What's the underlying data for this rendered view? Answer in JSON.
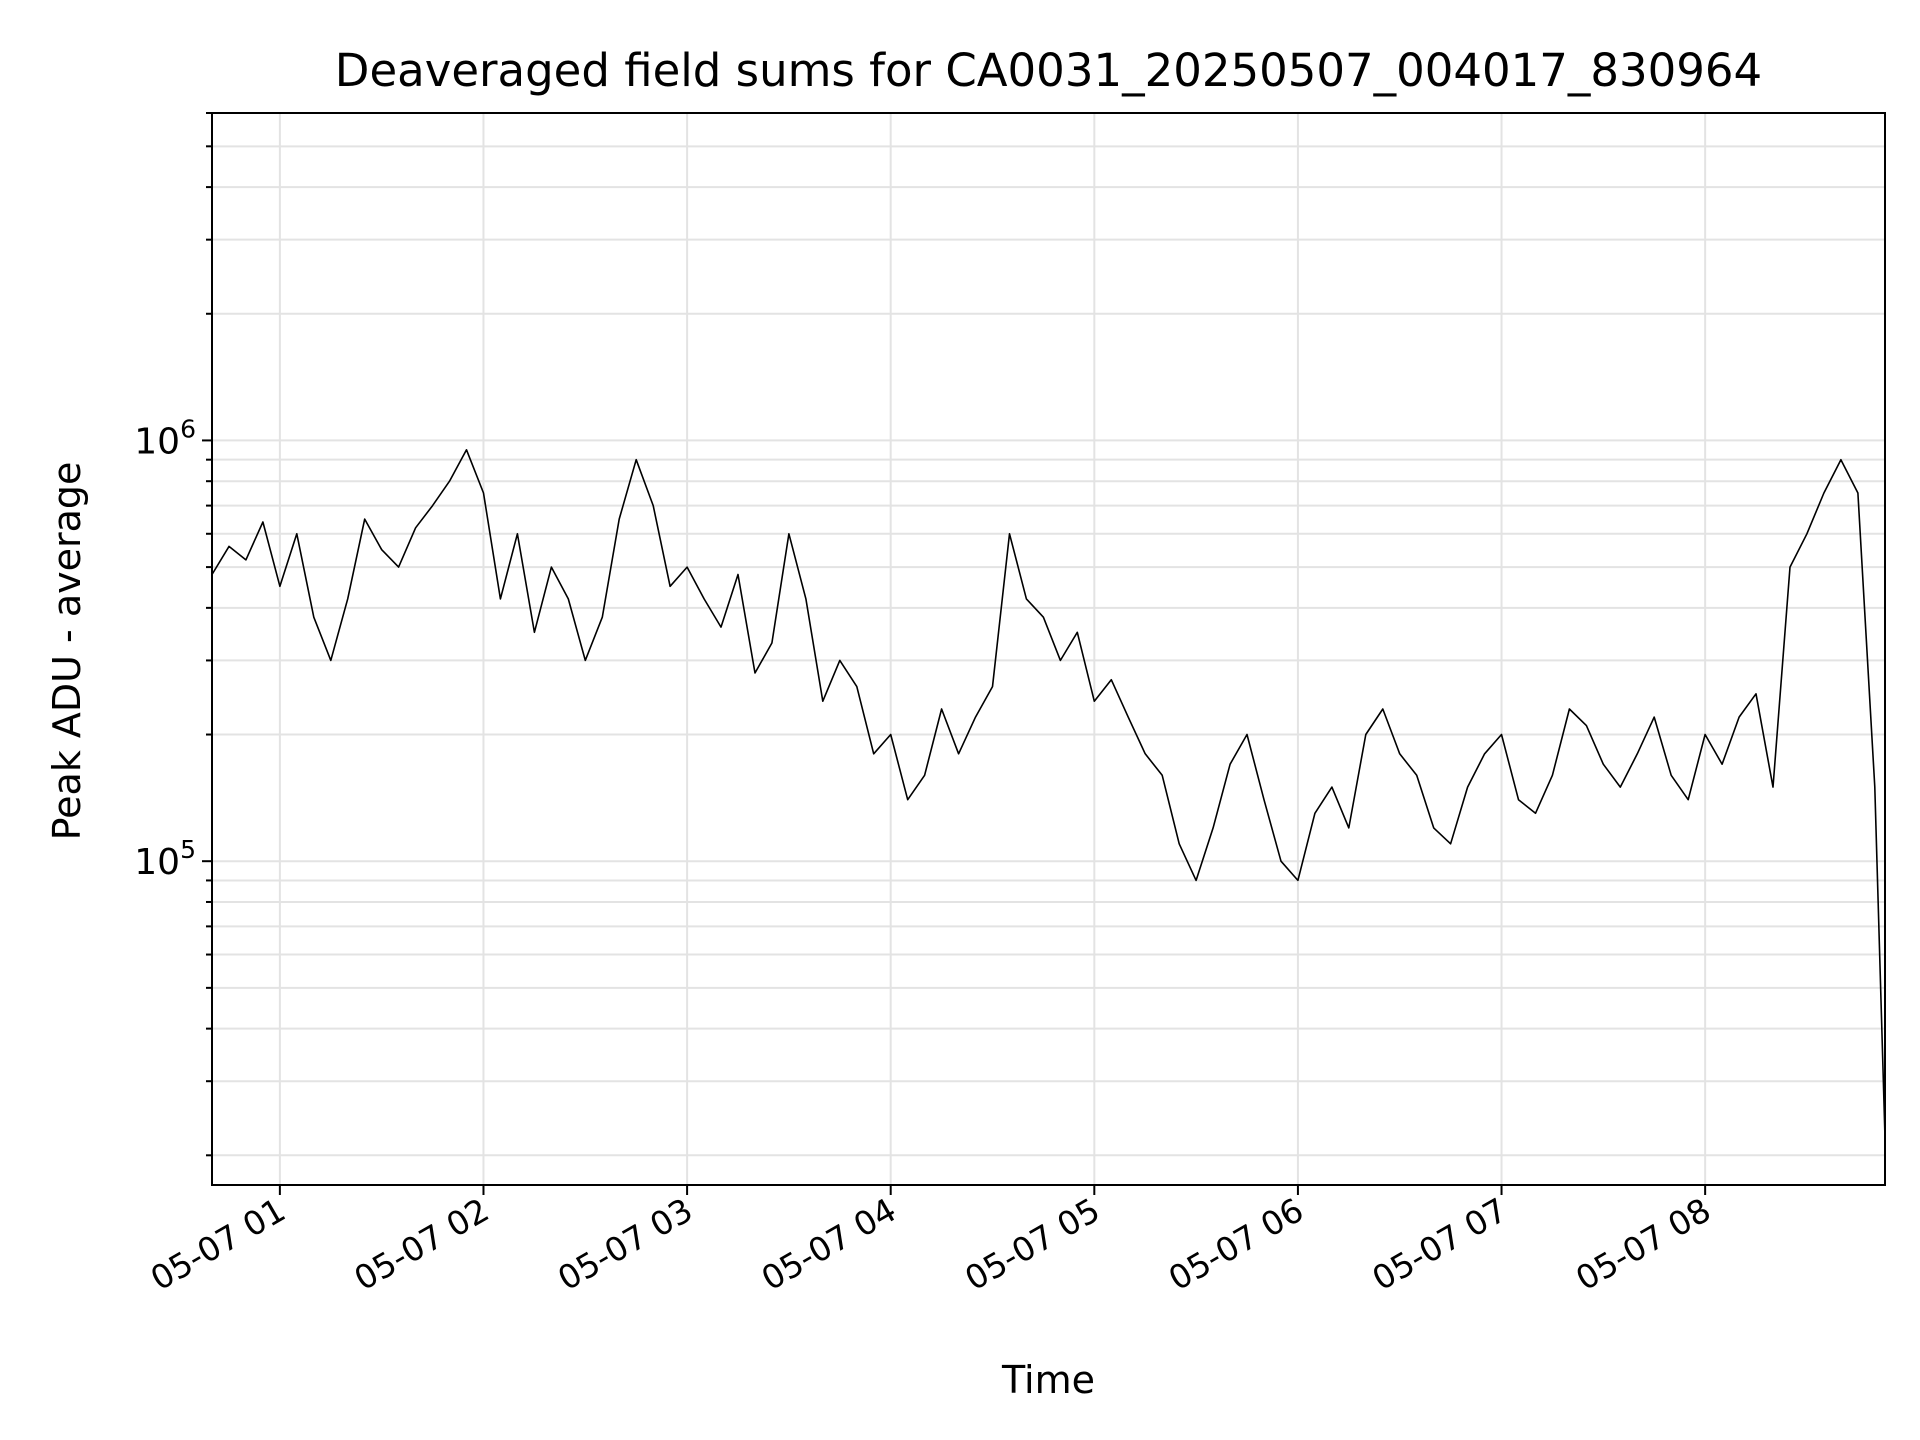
{
  "chart_data": {
    "type": "line",
    "title": "Deaveraged field sums for CA0031_20250507_004017_830964",
    "xlabel": "Time",
    "ylabel": "Peak ADU - average",
    "x_range": [
      "05-07 00:40",
      "05-07 08:53"
    ],
    "x_ticks": [
      "05-07 01",
      "05-07 02",
      "05-07 03",
      "05-07 04",
      "05-07 05",
      "05-07 06",
      "05-07 07",
      "05-07 08"
    ],
    "y_scale": "log",
    "y_range": [
      17000,
      6000000
    ],
    "y_major_ticks": [
      {
        "value": 100000,
        "base": "10",
        "exp": "5"
      },
      {
        "value": 1000000,
        "base": "10",
        "exp": "6"
      }
    ],
    "grid": true,
    "series": [
      {
        "color": "#000000",
        "x": [
          "00:40",
          "00:45",
          "00:50",
          "00:55",
          "01:00",
          "01:05",
          "01:10",
          "01:15",
          "01:20",
          "01:25",
          "01:30",
          "01:35",
          "01:40",
          "01:45",
          "01:50",
          "01:55",
          "02:00",
          "02:05",
          "02:10",
          "02:15",
          "02:20",
          "02:25",
          "02:30",
          "02:35",
          "02:40",
          "02:45",
          "02:50",
          "02:55",
          "03:00",
          "03:05",
          "03:10",
          "03:15",
          "03:20",
          "03:25",
          "03:30",
          "03:35",
          "03:40",
          "03:45",
          "03:50",
          "03:55",
          "04:00",
          "04:05",
          "04:10",
          "04:15",
          "04:20",
          "04:25",
          "04:30",
          "04:35",
          "04:40",
          "04:45",
          "04:50",
          "04:55",
          "05:00",
          "05:05",
          "05:10",
          "05:15",
          "05:20",
          "05:25",
          "05:30",
          "05:35",
          "05:40",
          "05:45",
          "05:50",
          "05:55",
          "06:00",
          "06:05",
          "06:10",
          "06:15",
          "06:20",
          "06:25",
          "06:30",
          "06:35",
          "06:40",
          "06:45",
          "06:50",
          "06:55",
          "07:00",
          "07:05",
          "07:10",
          "07:15",
          "07:20",
          "07:25",
          "07:30",
          "07:35",
          "07:40",
          "07:45",
          "07:50",
          "07:55",
          "08:00",
          "08:05",
          "08:10",
          "08:15",
          "08:20",
          "08:25",
          "08:30",
          "08:35",
          "08:40",
          "08:45",
          "08:50",
          "08:53"
        ],
        "y": [
          480000,
          560000,
          520000,
          640000,
          450000,
          600000,
          380000,
          300000,
          420000,
          650000,
          550000,
          500000,
          620000,
          700000,
          800000,
          950000,
          750000,
          420000,
          600000,
          350000,
          500000,
          420000,
          300000,
          380000,
          650000,
          900000,
          700000,
          450000,
          500000,
          420000,
          360000,
          480000,
          280000,
          330000,
          600000,
          420000,
          240000,
          300000,
          260000,
          180000,
          200000,
          140000,
          160000,
          230000,
          180000,
          220000,
          260000,
          600000,
          420000,
          380000,
          300000,
          350000,
          240000,
          270000,
          220000,
          180000,
          160000,
          110000,
          90000,
          120000,
          170000,
          200000,
          140000,
          100000,
          90000,
          130000,
          150000,
          120000,
          200000,
          230000,
          180000,
          160000,
          120000,
          110000,
          150000,
          180000,
          200000,
          140000,
          130000,
          160000,
          230000,
          210000,
          170000,
          150000,
          180000,
          220000,
          160000,
          140000,
          200000,
          170000,
          220000,
          250000,
          150000,
          500000,
          600000,
          750000,
          900000,
          750000,
          150000,
          22000
        ]
      }
    ]
  }
}
